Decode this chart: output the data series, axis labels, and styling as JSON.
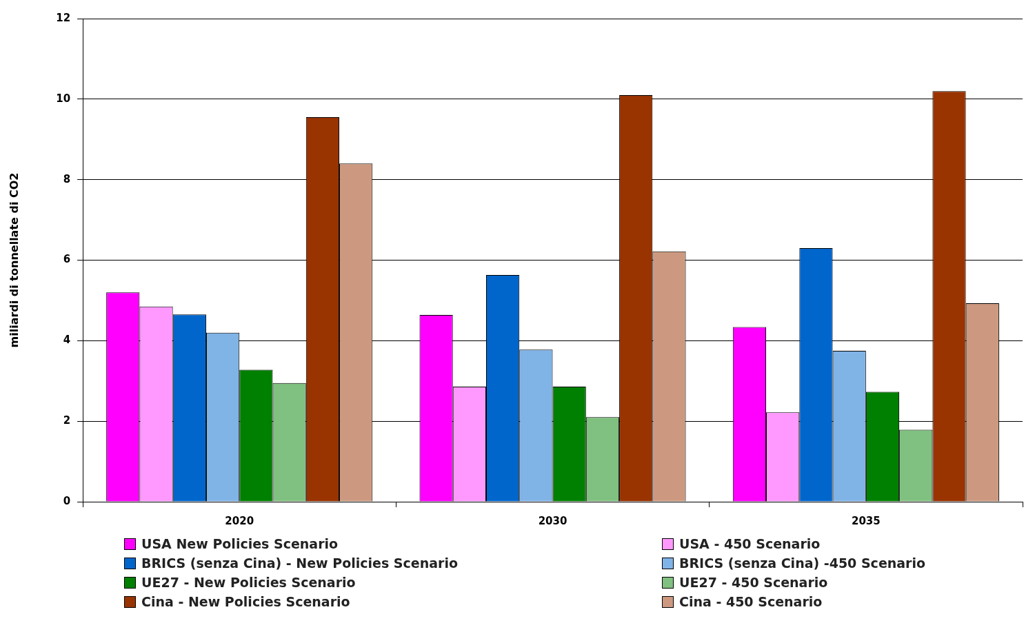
{
  "chart_data": {
    "type": "bar",
    "ylabel": "miliardi di tonnellate di CO2",
    "categories": [
      "2020",
      "2030",
      "2035"
    ],
    "series": [
      {
        "name": "USA New Policies Scenario",
        "color": "#ff00ff",
        "values": [
          5.2,
          4.64,
          4.34
        ]
      },
      {
        "name": "USA - 450 Scenario",
        "color": "#ff99ff",
        "values": [
          4.85,
          2.86,
          2.22
        ]
      },
      {
        "name": "BRICS (senza Cina) - New Policies Scenario",
        "color": "#0066cc",
        "values": [
          4.65,
          5.63,
          6.3
        ]
      },
      {
        "name": "BRICS (senza Cina) -450 Scenario",
        "color": "#80b3e6",
        "values": [
          4.2,
          3.78,
          3.75
        ]
      },
      {
        "name": "UE27 -  New Policies Scenario",
        "color": "#008000",
        "values": [
          3.28,
          2.86,
          2.73
        ]
      },
      {
        "name": "UE27 -  450 Scenario",
        "color": "#80c080",
        "values": [
          2.95,
          2.1,
          1.79
        ]
      },
      {
        "name": "Cina - New Policies Scenario",
        "color": "#993300",
        "values": [
          9.55,
          10.1,
          10.2
        ]
      },
      {
        "name": "Cina - 450 Scenario",
        "color": "#cc9980",
        "values": [
          8.4,
          6.22,
          4.93
        ]
      }
    ],
    "ylim": [
      0,
      12
    ],
    "yticks": [
      0,
      2,
      4,
      6,
      8,
      10,
      12
    ],
    "grid": "y",
    "legend": "bottom"
  }
}
